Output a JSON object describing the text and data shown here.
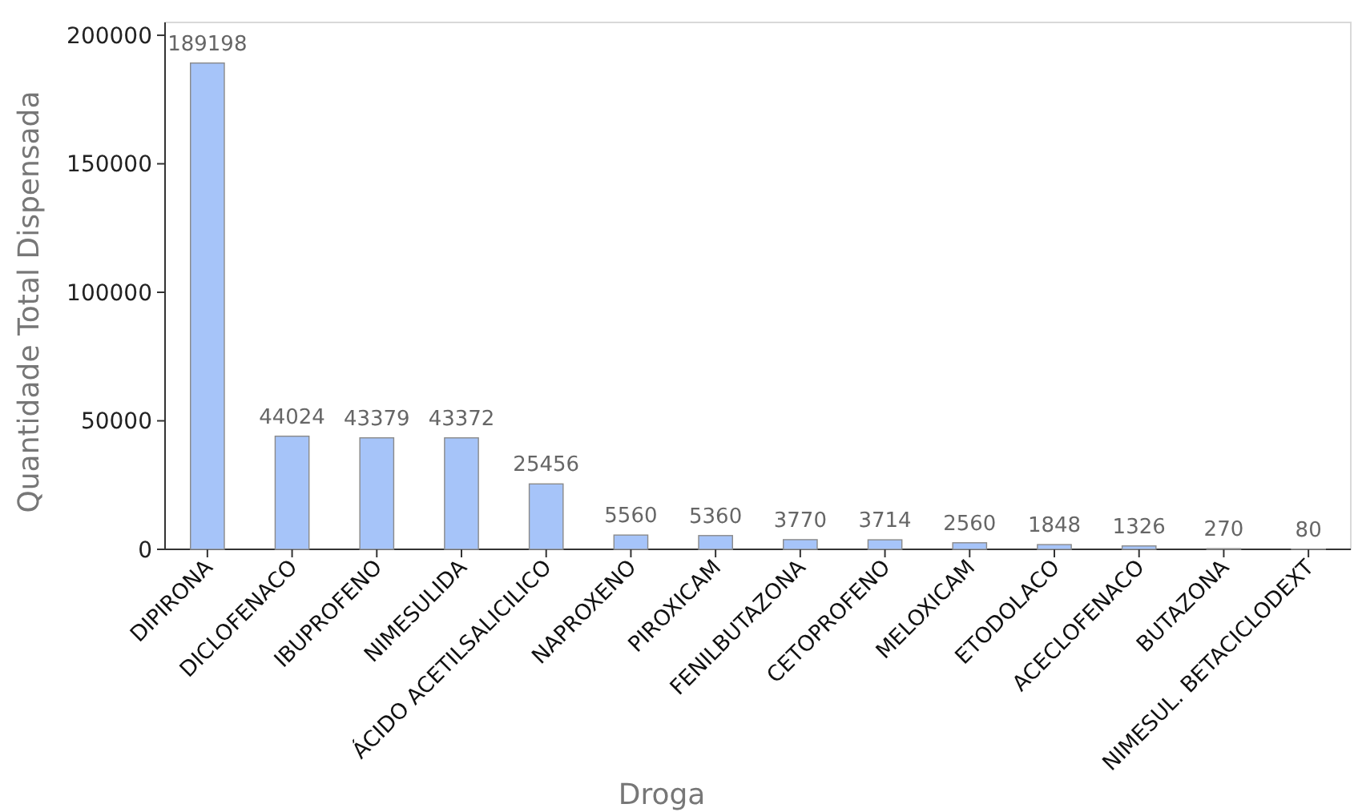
{
  "chart_data": {
    "type": "bar",
    "xlabel": "Droga",
    "ylabel": "Quantidade Total Dispensada",
    "categories": [
      "DIPIRONA",
      "DICLOFENACO",
      "IBUPROFENO",
      "NIMESULIDA",
      "ÁCIDO ACETILSALICILICO",
      "NAPROXENO",
      "PIROXICAM",
      "FENILBUTAZONA",
      "CETOPROFENO",
      "MELOXICAM",
      "ETODOLACO",
      "ACECLOFENACO",
      "BUTAZONA",
      "NIMESUL. BETACICLODEXT"
    ],
    "values": [
      189198,
      44024,
      43379,
      43372,
      25456,
      5560,
      5360,
      3770,
      3714,
      2560,
      1848,
      1326,
      270,
      80
    ],
    "color": "#a6c4f9",
    "ylim": [
      0,
      205000
    ],
    "yticks": [
      0,
      50000,
      100000,
      150000,
      200000
    ],
    "data_labels": true,
    "grid": false
  }
}
